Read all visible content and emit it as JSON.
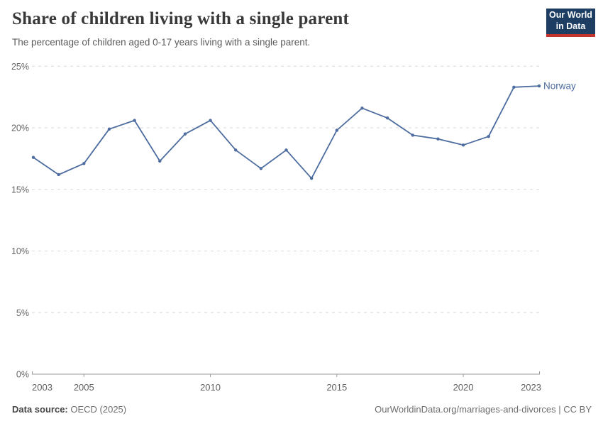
{
  "header": {
    "title": "Share of children living with a single parent",
    "subtitle": "The percentage of children aged 0-17 years living with a single parent.",
    "logo": {
      "line1": "Our World",
      "line2": "in Data",
      "bg_color": "#1d3d63",
      "bar_color": "#c5342c"
    }
  },
  "chart_data": {
    "type": "line",
    "title": "Share of children living with a single parent",
    "subtitle": "The percentage of children aged 0-17 years living with a single parent.",
    "x": [
      2003,
      2004,
      2005,
      2006,
      2007,
      2008,
      2009,
      2010,
      2011,
      2012,
      2013,
      2014,
      2015,
      2016,
      2017,
      2018,
      2019,
      2020,
      2021,
      2022,
      2023
    ],
    "series": [
      {
        "name": "Norway",
        "color": "#4d6c9f",
        "values": [
          17.6,
          16.2,
          17.1,
          19.9,
          20.6,
          17.3,
          19.5,
          20.6,
          18.2,
          16.7,
          18.2,
          15.9,
          19.8,
          21.6,
          20.8,
          19.4,
          19.1,
          18.6,
          19.3,
          23.3,
          23.4
        ]
      }
    ],
    "xlim": [
      2003,
      2023
    ],
    "ylim": [
      0,
      25
    ],
    "x_ticks": [
      2003,
      2005,
      2010,
      2015,
      2020,
      2023
    ],
    "y_ticks": [
      0,
      5,
      10,
      15,
      20,
      25
    ],
    "y_tick_suffix": "%",
    "grid": "horizontal-dashed",
    "legend": "series-end-label",
    "axis_color": "#9a9a9a",
    "grid_color": "#dadada"
  },
  "footer": {
    "source_label": "Data source:",
    "source_value": " OECD (2025)",
    "attribution": "OurWorldinData.org/marriages-and-divorces | CC BY"
  }
}
